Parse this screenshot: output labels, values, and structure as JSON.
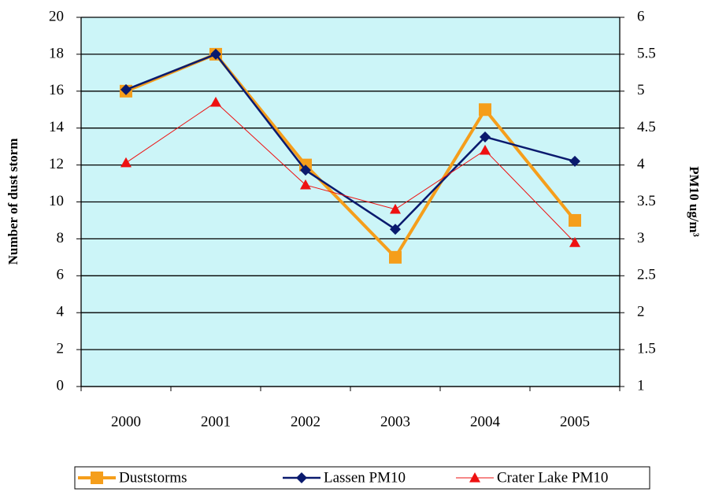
{
  "chart_data": {
    "type": "line",
    "categories": [
      "2000",
      "2001",
      "2002",
      "2003",
      "2004",
      "2005"
    ],
    "y_label": "Number of dust storm",
    "y2_label": "PM10 ug/m³",
    "ylim": [
      0,
      20
    ],
    "yticks": [
      0,
      2,
      4,
      6,
      8,
      10,
      12,
      14,
      16,
      18,
      20
    ],
    "y2lim": [
      1,
      6
    ],
    "y2ticks": [
      1,
      1.5,
      2,
      2.5,
      3,
      3.5,
      4,
      4.5,
      5,
      5.5,
      6
    ],
    "grid": true,
    "background": "#ccf5f8",
    "legend": "bottom",
    "series": [
      {
        "name": "Duststorms",
        "color": "#f59e1b",
        "marker": "square",
        "line_width": 4,
        "values": [
          16,
          18,
          12,
          7,
          15,
          9
        ]
      },
      {
        "name": "Lassen PM10",
        "color": "#0a1a6e",
        "marker": "diamond",
        "line_width": 2.5,
        "axis": "y2",
        "values": [
          5.02,
          5.5,
          3.93,
          3.13,
          4.38,
          4.05
        ]
      },
      {
        "name": "Crater Lake PM10",
        "color": "#ee1111",
        "marker": "triangle",
        "line_width": 1,
        "axis": "y2",
        "values": [
          4.03,
          4.85,
          3.73,
          3.4,
          4.2,
          2.95
        ]
      }
    ]
  }
}
